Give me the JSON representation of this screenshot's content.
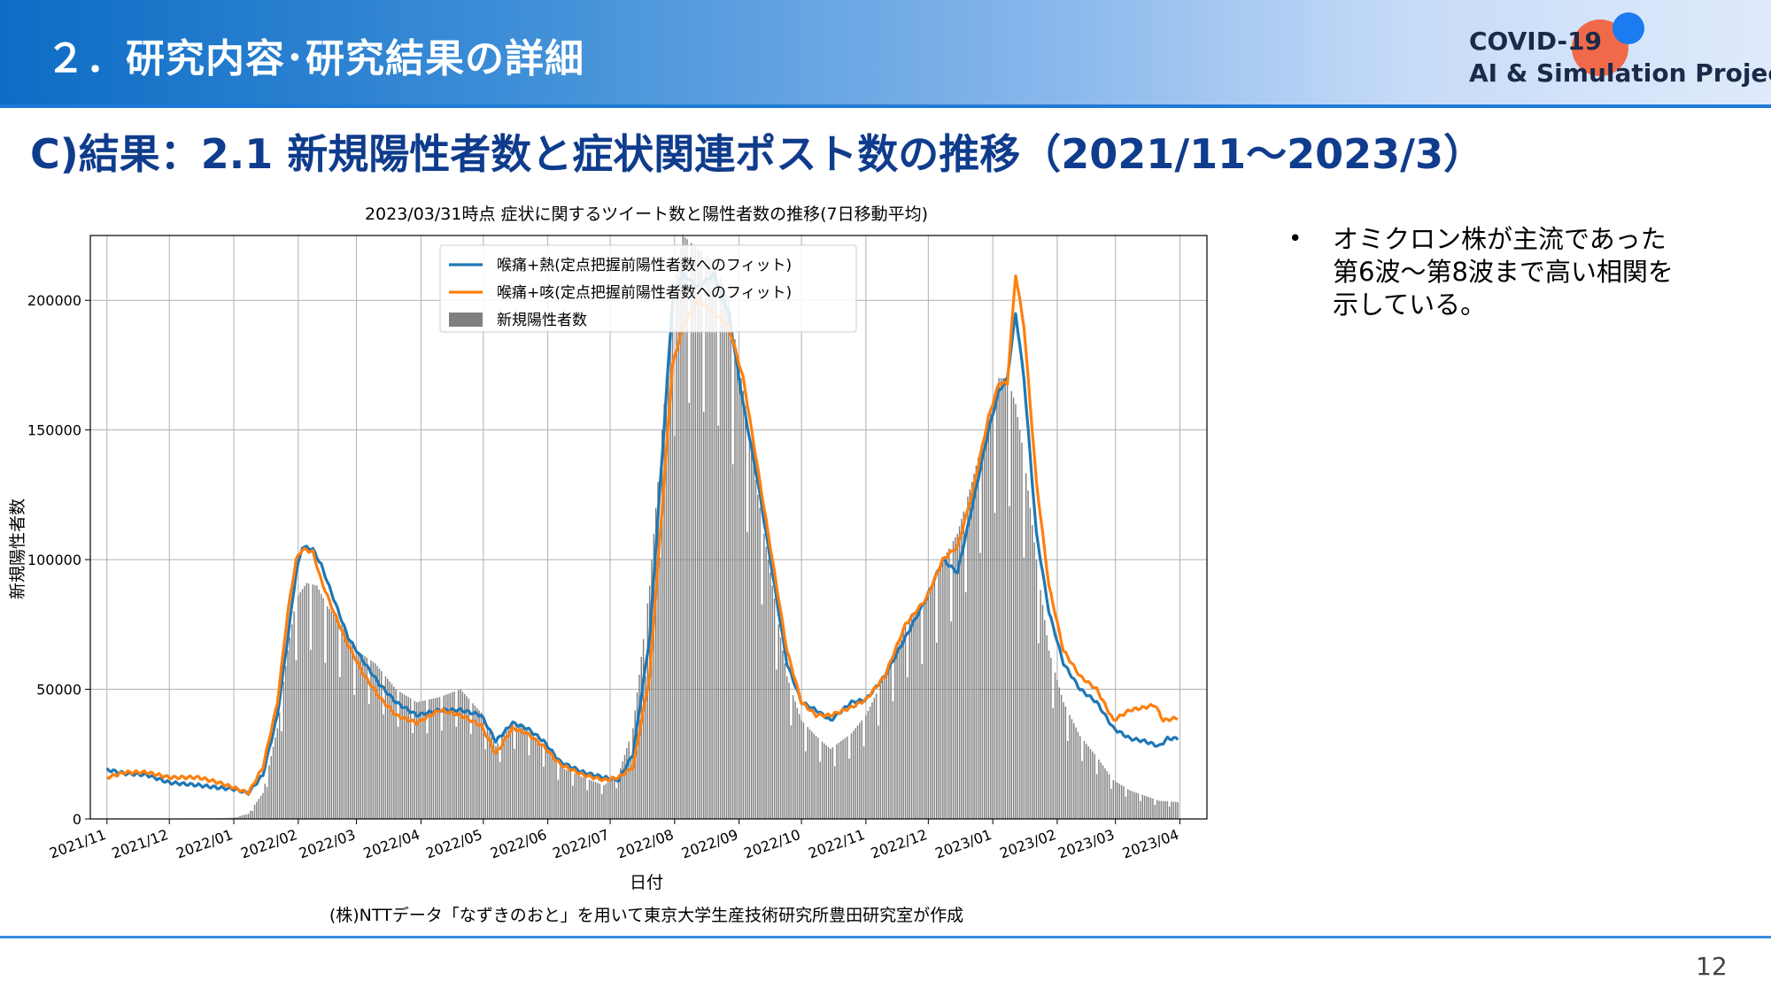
{
  "header": {
    "title": "２．研究内容･研究結果の詳細",
    "logo_line1": "COVID-19",
    "logo_line2": "AI & Simulation Project"
  },
  "section_title": "C)結果：2.1 新規陽性者数と症状関連ポスト数の推移（2021/11～2023/3）",
  "bullet": {
    "mark": "•",
    "text": "オミクロン株が主流であった第6波～第8波まで高い相関を示している。"
  },
  "page_number": "12",
  "chart_data": {
    "type": "line",
    "title": "2023/03/31時点 症状に関するツイート数と陽性者数の推移(7日移動平均)",
    "xlabel": "日付",
    "ylabel": "新規陽性者数",
    "caption": "(株)NTTデータ「なずきのおと」を用いて東京大学生産技術研究所豊田研究室が作成",
    "ylim": [
      0,
      225000
    ],
    "yticks": [
      0,
      50000,
      100000,
      150000,
      200000
    ],
    "xlim": [
      "2021-10-24",
      "2023-04-14"
    ],
    "xticks": [
      "2021/11",
      "2021/12",
      "2022/01",
      "2022/02",
      "2022/03",
      "2022/04",
      "2022/05",
      "2022/06",
      "2022/07",
      "2022/08",
      "2022/09",
      "2022/10",
      "2022/11",
      "2022/12",
      "2023/01",
      "2023/02",
      "2023/03",
      "2023/04"
    ],
    "grid": true,
    "legend_position": "top-center",
    "series": [
      {
        "name": "喉痛+熱(定点把握前陽性者数へのフィット)",
        "kind": "line",
        "color": "#1f77b4",
        "points": [
          [
            "2021-11-01",
            19000
          ],
          [
            "2021-11-10",
            17500
          ],
          [
            "2021-11-20",
            17000
          ],
          [
            "2021-12-01",
            14000
          ],
          [
            "2021-12-15",
            13000
          ],
          [
            "2021-12-25",
            12000
          ],
          [
            "2022-01-01",
            11500
          ],
          [
            "2022-01-08",
            10000
          ],
          [
            "2022-01-15",
            17000
          ],
          [
            "2022-01-22",
            40000
          ],
          [
            "2022-01-27",
            70000
          ],
          [
            "2022-01-31",
            95000
          ],
          [
            "2022-02-03",
            105000
          ],
          [
            "2022-02-08",
            104000
          ],
          [
            "2022-02-12",
            98000
          ],
          [
            "2022-02-18",
            85000
          ],
          [
            "2022-02-25",
            70000
          ],
          [
            "2022-03-05",
            60000
          ],
          [
            "2022-03-12",
            52000
          ],
          [
            "2022-03-20",
            45000
          ],
          [
            "2022-03-30",
            40000
          ],
          [
            "2022-04-10",
            42000
          ],
          [
            "2022-04-20",
            42000
          ],
          [
            "2022-04-30",
            40000
          ],
          [
            "2022-05-07",
            30000
          ],
          [
            "2022-05-15",
            37000
          ],
          [
            "2022-05-22",
            35000
          ],
          [
            "2022-05-30",
            30000
          ],
          [
            "2022-06-07",
            22000
          ],
          [
            "2022-06-18",
            18000
          ],
          [
            "2022-06-28",
            16000
          ],
          [
            "2022-07-05",
            15000
          ],
          [
            "2022-07-12",
            25000
          ],
          [
            "2022-07-20",
            70000
          ],
          [
            "2022-07-26",
            140000
          ],
          [
            "2022-07-31",
            200000
          ],
          [
            "2022-08-05",
            210000
          ],
          [
            "2022-08-12",
            205000
          ],
          [
            "2022-08-20",
            210000
          ],
          [
            "2022-08-27",
            195000
          ],
          [
            "2022-09-03",
            160000
          ],
          [
            "2022-09-10",
            130000
          ],
          [
            "2022-09-17",
            95000
          ],
          [
            "2022-09-24",
            60000
          ],
          [
            "2022-10-01",
            45000
          ],
          [
            "2022-10-08",
            42000
          ],
          [
            "2022-10-15",
            38000
          ],
          [
            "2022-10-25",
            45000
          ],
          [
            "2022-11-01",
            46000
          ],
          [
            "2022-11-10",
            55000
          ],
          [
            "2022-11-20",
            70000
          ],
          [
            "2022-11-30",
            85000
          ],
          [
            "2022-12-08",
            100000
          ],
          [
            "2022-12-15",
            95000
          ],
          [
            "2022-12-22",
            120000
          ],
          [
            "2022-12-30",
            150000
          ],
          [
            "2023-01-04",
            165000
          ],
          [
            "2023-01-08",
            170000
          ],
          [
            "2023-01-12",
            195000
          ],
          [
            "2023-01-16",
            170000
          ],
          [
            "2023-01-22",
            110000
          ],
          [
            "2023-01-28",
            80000
          ],
          [
            "2023-02-04",
            60000
          ],
          [
            "2023-02-12",
            50000
          ],
          [
            "2023-02-20",
            45000
          ],
          [
            "2023-02-28",
            35000
          ],
          [
            "2023-03-08",
            31000
          ],
          [
            "2023-03-15",
            30000
          ],
          [
            "2023-03-22",
            28000
          ],
          [
            "2023-03-26",
            31000
          ],
          [
            "2023-03-31",
            31000
          ]
        ]
      },
      {
        "name": "喉痛+咳(定点把握前陽性者数へのフィット)",
        "kind": "line",
        "color": "#ff7f0e",
        "points": [
          [
            "2021-11-01",
            16000
          ],
          [
            "2021-11-10",
            18000
          ],
          [
            "2021-11-20",
            18000
          ],
          [
            "2021-12-01",
            16000
          ],
          [
            "2021-12-15",
            16000
          ],
          [
            "2021-12-25",
            14000
          ],
          [
            "2022-01-01",
            12000
          ],
          [
            "2022-01-08",
            10000
          ],
          [
            "2022-01-15",
            20000
          ],
          [
            "2022-01-22",
            45000
          ],
          [
            "2022-01-27",
            80000
          ],
          [
            "2022-01-31",
            100000
          ],
          [
            "2022-02-03",
            104000
          ],
          [
            "2022-02-08",
            103000
          ],
          [
            "2022-02-12",
            92000
          ],
          [
            "2022-02-18",
            80000
          ],
          [
            "2022-02-25",
            67000
          ],
          [
            "2022-03-05",
            55000
          ],
          [
            "2022-03-12",
            47000
          ],
          [
            "2022-03-20",
            40000
          ],
          [
            "2022-03-30",
            37000
          ],
          [
            "2022-04-10",
            42000
          ],
          [
            "2022-04-20",
            40000
          ],
          [
            "2022-04-30",
            36000
          ],
          [
            "2022-05-07",
            25000
          ],
          [
            "2022-05-15",
            35000
          ],
          [
            "2022-05-22",
            33000
          ],
          [
            "2022-05-30",
            28000
          ],
          [
            "2022-06-07",
            21000
          ],
          [
            "2022-06-18",
            17000
          ],
          [
            "2022-06-28",
            15000
          ],
          [
            "2022-07-05",
            16000
          ],
          [
            "2022-07-12",
            20000
          ],
          [
            "2022-07-20",
            55000
          ],
          [
            "2022-07-26",
            120000
          ],
          [
            "2022-07-31",
            175000
          ],
          [
            "2022-08-05",
            190000
          ],
          [
            "2022-08-12",
            200000
          ],
          [
            "2022-08-20",
            195000
          ],
          [
            "2022-08-27",
            190000
          ],
          [
            "2022-09-03",
            170000
          ],
          [
            "2022-09-10",
            135000
          ],
          [
            "2022-09-17",
            100000
          ],
          [
            "2022-09-24",
            65000
          ],
          [
            "2022-10-01",
            45000
          ],
          [
            "2022-10-08",
            40000
          ],
          [
            "2022-10-15",
            40000
          ],
          [
            "2022-10-25",
            43000
          ],
          [
            "2022-11-01",
            46000
          ],
          [
            "2022-11-10",
            55000
          ],
          [
            "2022-11-20",
            75000
          ],
          [
            "2022-11-30",
            85000
          ],
          [
            "2022-12-08",
            100000
          ],
          [
            "2022-12-15",
            105000
          ],
          [
            "2022-12-22",
            125000
          ],
          [
            "2022-12-30",
            155000
          ],
          [
            "2023-01-04",
            168000
          ],
          [
            "2023-01-08",
            168000
          ],
          [
            "2023-01-12",
            210000
          ],
          [
            "2023-01-16",
            190000
          ],
          [
            "2023-01-22",
            130000
          ],
          [
            "2023-01-28",
            90000
          ],
          [
            "2023-02-04",
            65000
          ],
          [
            "2023-02-12",
            55000
          ],
          [
            "2023-02-20",
            50000
          ],
          [
            "2023-02-28",
            38000
          ],
          [
            "2023-03-08",
            42000
          ],
          [
            "2023-03-15",
            43000
          ],
          [
            "2023-03-20",
            44000
          ],
          [
            "2023-03-24",
            38000
          ],
          [
            "2023-03-31",
            39000
          ]
        ]
      },
      {
        "name": "新規陽性者数",
        "kind": "bar",
        "color": "#808080",
        "points": [
          [
            "2021-11-01",
            200
          ],
          [
            "2021-12-01",
            150
          ],
          [
            "2021-12-25",
            300
          ],
          [
            "2022-01-01",
            500
          ],
          [
            "2022-01-08",
            2000
          ],
          [
            "2022-01-15",
            10000
          ],
          [
            "2022-01-22",
            35000
          ],
          [
            "2022-01-27",
            65000
          ],
          [
            "2022-01-31",
            85000
          ],
          [
            "2022-02-05",
            91000
          ],
          [
            "2022-02-10",
            90000
          ],
          [
            "2022-02-15",
            82000
          ],
          [
            "2022-02-22",
            75000
          ],
          [
            "2022-03-01",
            65000
          ],
          [
            "2022-03-10",
            60000
          ],
          [
            "2022-03-20",
            50000
          ],
          [
            "2022-03-30",
            45000
          ],
          [
            "2022-04-10",
            47000
          ],
          [
            "2022-04-20",
            50000
          ],
          [
            "2022-04-30",
            41000
          ],
          [
            "2022-05-07",
            28000
          ],
          [
            "2022-05-15",
            38000
          ],
          [
            "2022-05-22",
            35000
          ],
          [
            "2022-05-30",
            28000
          ],
          [
            "2022-06-07",
            20000
          ],
          [
            "2022-06-18",
            16000
          ],
          [
            "2022-06-28",
            13000
          ],
          [
            "2022-07-05",
            17000
          ],
          [
            "2022-07-12",
            35000
          ],
          [
            "2022-07-20",
            90000
          ],
          [
            "2022-07-26",
            150000
          ],
          [
            "2022-07-31",
            200000
          ],
          [
            "2022-08-05",
            225000
          ],
          [
            "2022-08-12",
            220000
          ],
          [
            "2022-08-20",
            215000
          ],
          [
            "2022-08-27",
            200000
          ],
          [
            "2022-09-03",
            165000
          ],
          [
            "2022-09-10",
            125000
          ],
          [
            "2022-09-17",
            90000
          ],
          [
            "2022-09-24",
            55000
          ],
          [
            "2022-10-01",
            38000
          ],
          [
            "2022-10-08",
            32000
          ],
          [
            "2022-10-15",
            27000
          ],
          [
            "2022-10-25",
            33000
          ],
          [
            "2022-11-01",
            40000
          ],
          [
            "2022-11-10",
            55000
          ],
          [
            "2022-11-20",
            75000
          ],
          [
            "2022-11-30",
            85000
          ],
          [
            "2022-12-08",
            100000
          ],
          [
            "2022-12-15",
            110000
          ],
          [
            "2022-12-22",
            130000
          ],
          [
            "2022-12-30",
            155000
          ],
          [
            "2023-01-04",
            170000
          ],
          [
            "2023-01-08",
            170000
          ],
          [
            "2023-01-12",
            160000
          ],
          [
            "2023-01-16",
            140000
          ],
          [
            "2023-01-22",
            100000
          ],
          [
            "2023-01-28",
            65000
          ],
          [
            "2023-02-04",
            45000
          ],
          [
            "2023-02-12",
            32000
          ],
          [
            "2023-02-20",
            24000
          ],
          [
            "2023-02-28",
            15000
          ],
          [
            "2023-03-08",
            11000
          ],
          [
            "2023-03-15",
            9000
          ],
          [
            "2023-03-22",
            7000
          ],
          [
            "2023-03-31",
            6500
          ]
        ]
      }
    ]
  }
}
